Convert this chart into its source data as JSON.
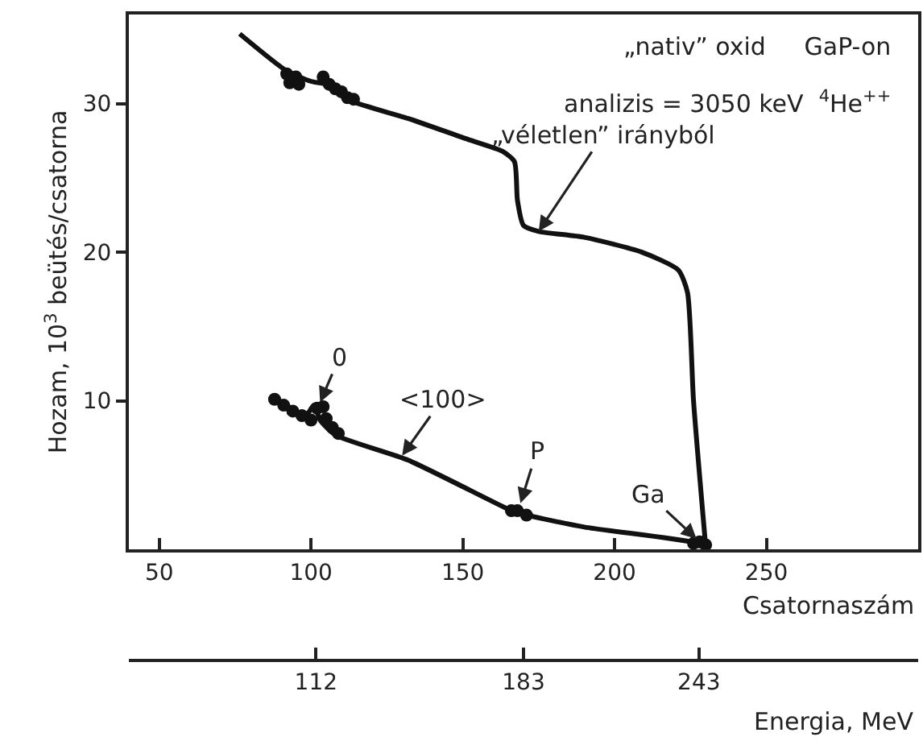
{
  "chart_data": {
    "type": "line",
    "xlabel": "Csatornaszám",
    "ylabel": "Hozam, 10$^{3}$ beütés/csatorna",
    "x2label": "Energia, MeV",
    "xlim": [
      40,
      300
    ],
    "xticks": [
      50,
      100,
      150,
      200,
      250
    ],
    "ylim": [
      0,
      36
    ],
    "yticks": [
      10,
      20,
      30
    ],
    "x2lim": [
      48,
      318
    ],
    "x2ticks": [
      112,
      183,
      243
    ],
    "series": [
      {
        "color": "#111111",
        "x": [
          76.5,
          92,
          100,
          105,
          113,
          132,
          151.6,
          163,
          167,
          168,
          170,
          175,
          190,
          209,
          221,
          224,
          226,
          230
        ],
        "values": [
          34.7,
          32.2,
          31.5,
          31.3,
          30.2,
          29.0,
          27.6,
          26.8,
          26.1,
          23.5,
          21.8,
          21.4,
          21.0,
          20.0,
          18.8,
          17.3,
          10,
          0.2
        ]
      },
      {
        "color": "#111111",
        "x": [
          87,
          92,
          97.6,
          101,
          103,
          108,
          132,
          165,
          169,
          190,
          225,
          230
        ],
        "values": [
          10.3,
          9.7,
          8.8,
          9.7,
          8.7,
          7.7,
          6.0,
          2.7,
          2.4,
          1.5,
          0.5,
          0.1
        ]
      },
      {
        "type": "scatter",
        "color": "#111111",
        "marker": "circle",
        "x": [
          92,
          93,
          95,
          96,
          104,
          106,
          108,
          110,
          112,
          114
        ],
        "values": [
          32.0,
          31.4,
          31.8,
          31.3,
          31.8,
          31.3,
          31.0,
          30.8,
          30.4,
          30.3
        ]
      },
      {
        "type": "scatter",
        "color": "#111111",
        "marker": "circle",
        "x": [
          88,
          91,
          94,
          97,
          100,
          102,
          104,
          105,
          107,
          109,
          166,
          168,
          171,
          226,
          228,
          230
        ],
        "values": [
          10.1,
          9.7,
          9.3,
          9.0,
          8.7,
          9.5,
          9.6,
          8.8,
          8.2,
          7.8,
          2.6,
          2.6,
          2.3,
          0.4,
          0.5,
          0.3
        ]
      }
    ],
    "annotations": [
      "„nativ” oxid     GaP-on",
      "analizis = 3050 keV  $^{4}$He$^{++}$",
      {
        "text": "„véletlen” irányból",
        "x": 175,
        "y": 21.4
      },
      {
        "text": "<100>",
        "x": 130,
        "y": 6.3
      },
      {
        "text": "0",
        "x": 103,
        "y": 9.9
      },
      {
        "text": "P",
        "x": 169,
        "y": 3.1
      },
      {
        "text": "Ga",
        "x": 227,
        "y": 0.7
      }
    ],
    "marker": "none"
  }
}
